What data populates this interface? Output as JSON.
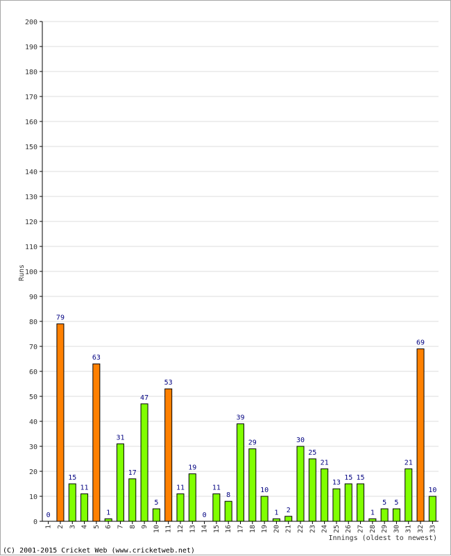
{
  "chart_data": {
    "type": "bar",
    "ylabel": "Runs",
    "xlabel": "Innings (oldest to newest)",
    "ylim": [
      0,
      200
    ],
    "ytick_step": 10,
    "grid": true,
    "categories": [
      "1",
      "2",
      "3",
      "4",
      "5",
      "6",
      "7",
      "8",
      "9",
      "10",
      "11",
      "12",
      "13",
      "14",
      "15",
      "16",
      "17",
      "18",
      "19",
      "20",
      "21",
      "22",
      "23",
      "24",
      "25",
      "26",
      "27",
      "28",
      "29",
      "30",
      "31",
      "32",
      "33"
    ],
    "values": [
      0,
      79,
      15,
      11,
      63,
      1,
      31,
      17,
      47,
      5,
      53,
      11,
      19,
      0,
      11,
      8,
      39,
      29,
      10,
      1,
      2,
      30,
      25,
      21,
      13,
      15,
      15,
      1,
      5,
      5,
      21,
      69,
      10
    ],
    "highlight_threshold": 50,
    "colors": {
      "normal": "#80ff00",
      "highlight": "#ff8000",
      "bar_outline": "#000000",
      "value_label": "#000080",
      "grid": "#dddddd",
      "axis": "#000000"
    }
  },
  "footer": {
    "copyright": "(C) 2001-2015 Cricket Web (www.cricketweb.net)"
  }
}
